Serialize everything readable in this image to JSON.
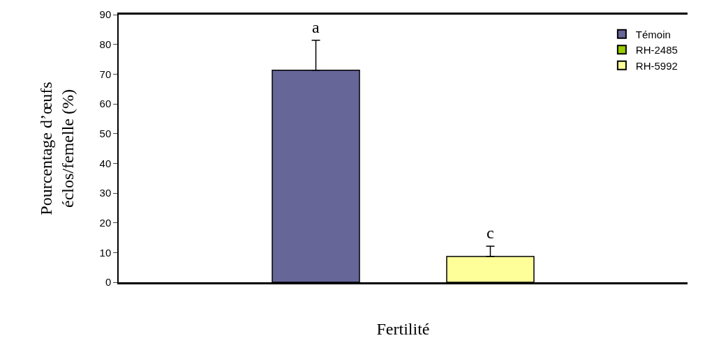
{
  "chart_data": {
    "type": "bar",
    "xlabel": "Fertilité",
    "ylabel": "Pourcentage d’œufs\néclos/femelle (%)",
    "categories": [
      null
    ],
    "series": [
      {
        "name": "Témoin",
        "color": "#666699",
        "values": [
          71.3
        ],
        "errors": [
          [
            71.3,
            81.4
          ]
        ],
        "value_labels": [
          "a"
        ]
      },
      {
        "name": "RH-2485",
        "color": "#99cc00",
        "values": [
          null
        ],
        "errors": [
          null
        ],
        "value_labels": [
          null
        ]
      },
      {
        "name": "RH-5992",
        "color": "#ffff99",
        "values": [
          8.7
        ],
        "errors": [
          [
            8.7,
            12.1
          ]
        ],
        "value_labels": [
          "c"
        ]
      }
    ],
    "ylim": [
      0,
      90
    ],
    "yticks": [
      0,
      10,
      20,
      30,
      40,
      50,
      60,
      70,
      80,
      90
    ],
    "grid": false,
    "legend": "top right"
  }
}
